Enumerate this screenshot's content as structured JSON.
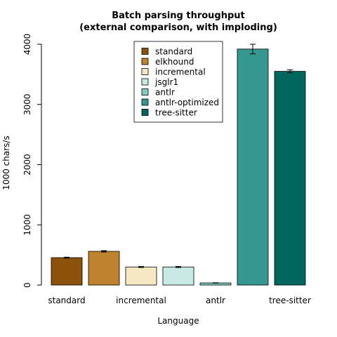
{
  "chart_data": {
    "type": "bar",
    "title_line1": "Batch parsing throughput",
    "title_line2": "(external comparison, with imploding)",
    "xlabel": "Language",
    "ylabel": "1000 chars/s",
    "ylim": [
      0,
      4000
    ],
    "yticks": [
      "0",
      "1000",
      "2000",
      "3000",
      "4000"
    ],
    "ytick_values": [
      0,
      1000,
      2000,
      3000,
      4000
    ],
    "xtick_labels": [
      "standard",
      "",
      "incremental",
      "",
      "antlr",
      "",
      "tree-sitter"
    ],
    "categories": [
      "standard",
      "elkhound",
      "incremental",
      "jsglr1",
      "antlr",
      "antlr-optimized",
      "tree-sitter"
    ],
    "values": [
      455,
      560,
      300,
      300,
      35,
      3920,
      3550
    ],
    "errors": [
      8,
      12,
      8,
      8,
      3,
      80,
      25
    ],
    "colors": [
      "#8c510a",
      "#bf812d",
      "#f6e8c3",
      "#c7eae5",
      "#80cdc1",
      "#35978f",
      "#01665e"
    ],
    "legend": {
      "placement": "top-center",
      "entries": [
        "standard",
        "elkhound",
        "incremental",
        "jsglr1",
        "antlr",
        "antlr-optimized",
        "tree-sitter"
      ]
    }
  }
}
